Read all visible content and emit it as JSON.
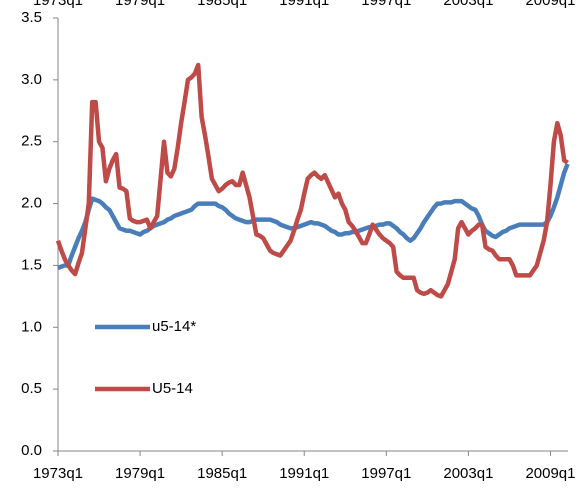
{
  "chart_data": {
    "type": "line",
    "categories": [
      "1973q1",
      null,
      null,
      null,
      null,
      null,
      null,
      null,
      null,
      null,
      null,
      null,
      null,
      null,
      null,
      null,
      null,
      null,
      null,
      null,
      null,
      null,
      null,
      null,
      "1979q1",
      null,
      null,
      null,
      null,
      null,
      null,
      null,
      null,
      null,
      null,
      null,
      null,
      null,
      null,
      null,
      null,
      null,
      null,
      null,
      null,
      null,
      null,
      null,
      "1985q1",
      null,
      null,
      null,
      null,
      null,
      null,
      null,
      null,
      null,
      null,
      null,
      null,
      null,
      null,
      null,
      null,
      null,
      null,
      null,
      null,
      null,
      null,
      null,
      "1991q1",
      null,
      null,
      null,
      null,
      null,
      null,
      null,
      null,
      null,
      null,
      null,
      null,
      null,
      null,
      null,
      null,
      null,
      null,
      null,
      null,
      null,
      null,
      null,
      "1997q1",
      null,
      null,
      null,
      null,
      null,
      null,
      null,
      null,
      null,
      null,
      null,
      null,
      null,
      null,
      null,
      null,
      null,
      null,
      null,
      null,
      null,
      null,
      null,
      "2003q1",
      null,
      null,
      null,
      null,
      null,
      null,
      null,
      null,
      null,
      null,
      null,
      null,
      null,
      null,
      null,
      null,
      null,
      null,
      null,
      null,
      null,
      null,
      null,
      "2009q1",
      null,
      null,
      null,
      null,
      null
    ],
    "series": [
      {
        "name": "u5-14*",
        "color": "#4a7ebb",
        "values": [
          1.48,
          1.49,
          1.5,
          1.5,
          1.58,
          1.65,
          1.72,
          1.78,
          1.85,
          1.95,
          2.04,
          2.03,
          2.02,
          2.0,
          1.97,
          1.95,
          1.9,
          1.85,
          1.8,
          1.79,
          1.78,
          1.78,
          1.77,
          1.76,
          1.75,
          1.77,
          1.78,
          1.8,
          1.82,
          1.83,
          1.84,
          1.85,
          1.87,
          1.88,
          1.9,
          1.91,
          1.92,
          1.93,
          1.94,
          1.95,
          1.98,
          2.0,
          2.0,
          2.0,
          2.0,
          2.0,
          2.0,
          1.98,
          1.97,
          1.95,
          1.92,
          1.9,
          1.88,
          1.87,
          1.86,
          1.85,
          1.85,
          1.86,
          1.87,
          1.87,
          1.87,
          1.87,
          1.87,
          1.86,
          1.85,
          1.83,
          1.82,
          1.81,
          1.8,
          1.8,
          1.81,
          1.82,
          1.83,
          1.84,
          1.85,
          1.84,
          1.84,
          1.83,
          1.82,
          1.8,
          1.78,
          1.77,
          1.75,
          1.75,
          1.76,
          1.76,
          1.77,
          1.77,
          1.78,
          1.79,
          1.8,
          1.81,
          1.81,
          1.82,
          1.83,
          1.83,
          1.84,
          1.84,
          1.82,
          1.8,
          1.77,
          1.75,
          1.72,
          1.7,
          1.72,
          1.76,
          1.8,
          1.85,
          1.89,
          1.93,
          1.97,
          2.0,
          2.0,
          2.01,
          2.01,
          2.01,
          2.02,
          2.02,
          2.02,
          2.0,
          1.98,
          1.96,
          1.95,
          1.9,
          1.83,
          1.78,
          1.76,
          1.74,
          1.73,
          1.75,
          1.77,
          1.78,
          1.8,
          1.81,
          1.82,
          1.83,
          1.83,
          1.83,
          1.83,
          1.83,
          1.83,
          1.83,
          1.83,
          1.85,
          1.9,
          1.97,
          2.05,
          2.15,
          2.25,
          2.32
        ]
      },
      {
        "name": "U5-14",
        "color": "#be4b48",
        "values": [
          1.7,
          1.62,
          1.55,
          1.5,
          1.46,
          1.43,
          1.52,
          1.6,
          1.8,
          2.0,
          2.82,
          2.82,
          2.5,
          2.45,
          2.18,
          2.28,
          2.35,
          2.4,
          2.13,
          2.12,
          2.1,
          1.88,
          1.86,
          1.85,
          1.85,
          1.86,
          1.87,
          1.8,
          1.85,
          1.9,
          2.2,
          2.5,
          2.25,
          2.22,
          2.28,
          2.45,
          2.65,
          2.82,
          3.0,
          3.02,
          3.05,
          3.12,
          2.7,
          2.55,
          2.38,
          2.2,
          2.15,
          2.1,
          2.12,
          2.15,
          2.17,
          2.18,
          2.15,
          2.15,
          2.25,
          2.15,
          2.05,
          1.9,
          1.75,
          1.74,
          1.72,
          1.67,
          1.62,
          1.6,
          1.59,
          1.58,
          1.62,
          1.66,
          1.7,
          1.78,
          1.87,
          1.95,
          2.08,
          2.2,
          2.23,
          2.25,
          2.22,
          2.2,
          2.23,
          2.17,
          2.11,
          2.05,
          2.08,
          2.0,
          1.95,
          1.85,
          1.82,
          1.78,
          1.73,
          1.68,
          1.68,
          1.75,
          1.83,
          1.79,
          1.75,
          1.72,
          1.7,
          1.68,
          1.65,
          1.45,
          1.42,
          1.4,
          1.4,
          1.4,
          1.4,
          1.3,
          1.28,
          1.27,
          1.28,
          1.3,
          1.28,
          1.26,
          1.25,
          1.3,
          1.35,
          1.45,
          1.55,
          1.8,
          1.85,
          1.8,
          1.75,
          1.78,
          1.8,
          1.83,
          1.83,
          1.65,
          1.63,
          1.62,
          1.58,
          1.55,
          1.55,
          1.55,
          1.55,
          1.5,
          1.42,
          1.42,
          1.42,
          1.42,
          1.42,
          1.46,
          1.5,
          1.6,
          1.7,
          1.85,
          2.15,
          2.5,
          2.65,
          2.55,
          2.35,
          2.33
        ]
      }
    ],
    "ylim": [
      0,
      3.5
    ],
    "yticks": [
      {
        "value": 0,
        "label": "0.0"
      },
      0.5,
      {
        "value": 1,
        "label": "1.0"
      },
      1.5,
      {
        "value": 2,
        "label": "2.0"
      },
      2.5,
      {
        "value": 3,
        "label": "3.0"
      },
      3.5
    ],
    "grid": false
  }
}
